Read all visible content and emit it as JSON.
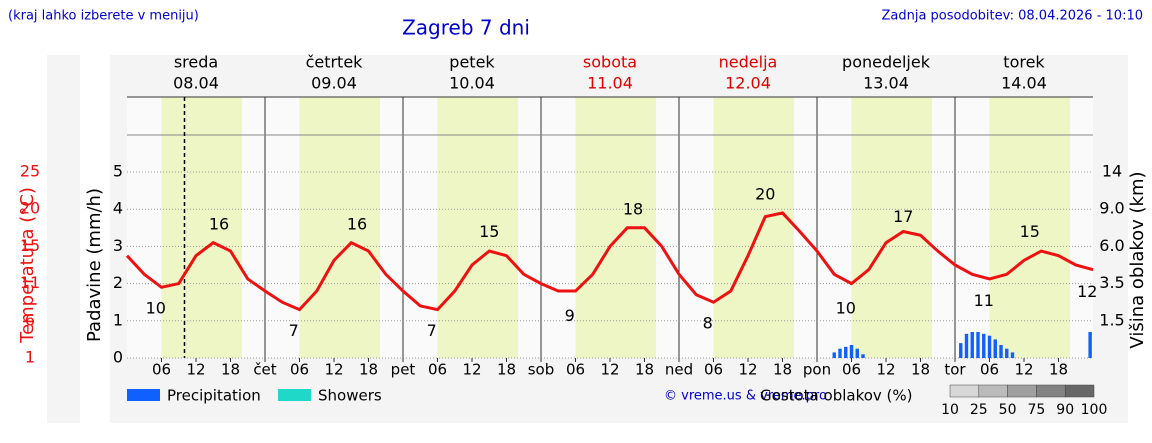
{
  "header": {
    "left_note": "(kraj lahko izberete v meniju)",
    "title": "Zagreb 7 dni",
    "updated": "Zadnja posodobitev: 08.04.2026 - 10:10"
  },
  "chart_data": {
    "type": "meteogram",
    "days": [
      {
        "name": "sreda",
        "date": "08.04",
        "color": "#000000"
      },
      {
        "name": "četrtek",
        "date": "09.04",
        "color": "#000000"
      },
      {
        "name": "petek",
        "date": "10.04",
        "color": "#000000"
      },
      {
        "name": "sobota",
        "date": "11.04",
        "color": "#e00000"
      },
      {
        "name": "nedelja",
        "date": "12.04",
        "color": "#e00000"
      },
      {
        "name": "ponedeljek",
        "date": "13.04",
        "color": "#000000"
      },
      {
        "name": "torek",
        "date": "14.04",
        "color": "#000000"
      }
    ],
    "xlim": [
      0,
      168
    ],
    "xticks": [
      {
        "value": 6,
        "label": "06"
      },
      {
        "value": 12,
        "label": "12"
      },
      {
        "value": 18,
        "label": "18"
      },
      {
        "value": 24,
        "label": "čet"
      },
      {
        "value": 30,
        "label": "06"
      },
      {
        "value": 36,
        "label": "12"
      },
      {
        "value": 42,
        "label": "18"
      },
      {
        "value": 48,
        "label": "pet"
      },
      {
        "value": 54,
        "label": "06"
      },
      {
        "value": 60,
        "label": "12"
      },
      {
        "value": 66,
        "label": "18"
      },
      {
        "value": 72,
        "label": "sob"
      },
      {
        "value": 78,
        "label": "06"
      },
      {
        "value": 84,
        "label": "12"
      },
      {
        "value": 90,
        "label": "18"
      },
      {
        "value": 96,
        "label": "ned"
      },
      {
        "value": 102,
        "label": "06"
      },
      {
        "value": 108,
        "label": "12"
      },
      {
        "value": 114,
        "label": "18"
      },
      {
        "value": 120,
        "label": "pon"
      },
      {
        "value": 126,
        "label": "06"
      },
      {
        "value": 132,
        "label": "12"
      },
      {
        "value": 138,
        "label": "18"
      },
      {
        "value": 144,
        "label": "tor"
      },
      {
        "value": 150,
        "label": "06"
      },
      {
        "value": 156,
        "label": "12"
      },
      {
        "value": 162,
        "label": "18"
      }
    ],
    "ylabel": "Padavine (mm/h)",
    "ylim": [
      0,
      5
    ],
    "yticks": [
      0,
      1,
      2,
      3,
      4,
      5
    ],
    "temp_label": "Temperatura (°C)",
    "temp_ticks": [
      1,
      6,
      11,
      15,
      20,
      25
    ],
    "y2label": "Višina oblakov (km)",
    "y2ticks": [
      {
        "value": 1.5,
        "label": "1.5"
      },
      {
        "value": 3.5,
        "label": "3.5"
      },
      {
        "value": 6,
        "label": "6.0"
      },
      {
        "value": 9,
        "label": "9.0"
      },
      14
    ],
    "temperature": {
      "color": "#ee1111",
      "x": [
        0,
        3,
        6,
        9,
        12,
        15,
        18,
        21,
        24,
        27,
        30,
        33,
        36,
        39,
        42,
        45,
        48,
        51,
        54,
        57,
        60,
        63,
        66,
        69,
        72,
        75,
        78,
        81,
        84,
        87,
        90,
        93,
        96,
        99,
        102,
        105,
        108,
        111,
        114,
        117,
        120,
        123,
        126,
        129,
        132,
        135,
        138,
        141,
        144,
        147,
        150,
        153,
        156,
        159,
        162,
        165,
        168
      ],
      "values": [
        14,
        12,
        10.5,
        11,
        14,
        15.5,
        14.5,
        11.5,
        10,
        8.5,
        7.5,
        10,
        13.5,
        15.5,
        14.5,
        12,
        10,
        8,
        7.5,
        10,
        13,
        14.5,
        14,
        12,
        11,
        10,
        10,
        12,
        15,
        17.5,
        17.5,
        15,
        12,
        9.5,
        8.5,
        10,
        14,
        19,
        19.5,
        17,
        14.5,
        12,
        11,
        12.5,
        15.5,
        17,
        16.5,
        14.5,
        13,
        12,
        11.5,
        12,
        13.5,
        14.5,
        14,
        13,
        12.5
      ]
    },
    "temperature_labels": {
      "x": [
        5,
        16,
        29,
        40,
        53,
        63,
        77,
        88,
        101,
        111,
        125,
        135,
        149,
        157,
        167
      ],
      "values": [
        10,
        16,
        7,
        16,
        7,
        15,
        9,
        18,
        8,
        20,
        10,
        17,
        11,
        15,
        12
      ]
    },
    "precipitation": {
      "name": "Precipitation",
      "color": "#1060ff",
      "x": [
        123,
        124,
        125,
        126,
        127,
        128,
        145,
        146,
        147,
        148,
        149,
        150,
        151,
        152,
        153,
        154,
        167.5
      ],
      "values": [
        0.15,
        0.25,
        0.3,
        0.35,
        0.25,
        0.1,
        0.4,
        0.65,
        0.7,
        0.7,
        0.65,
        0.6,
        0.5,
        0.35,
        0.25,
        0.15,
        0.7
      ]
    },
    "showers": {
      "name": "Showers",
      "color": "#20d8c8"
    },
    "credit": "© vreme.us & vreme.pro",
    "cloud_legend": {
      "title": "Gostota oblakov (%)",
      "ticks": [
        10,
        25,
        50,
        75,
        90,
        100
      ]
    }
  }
}
